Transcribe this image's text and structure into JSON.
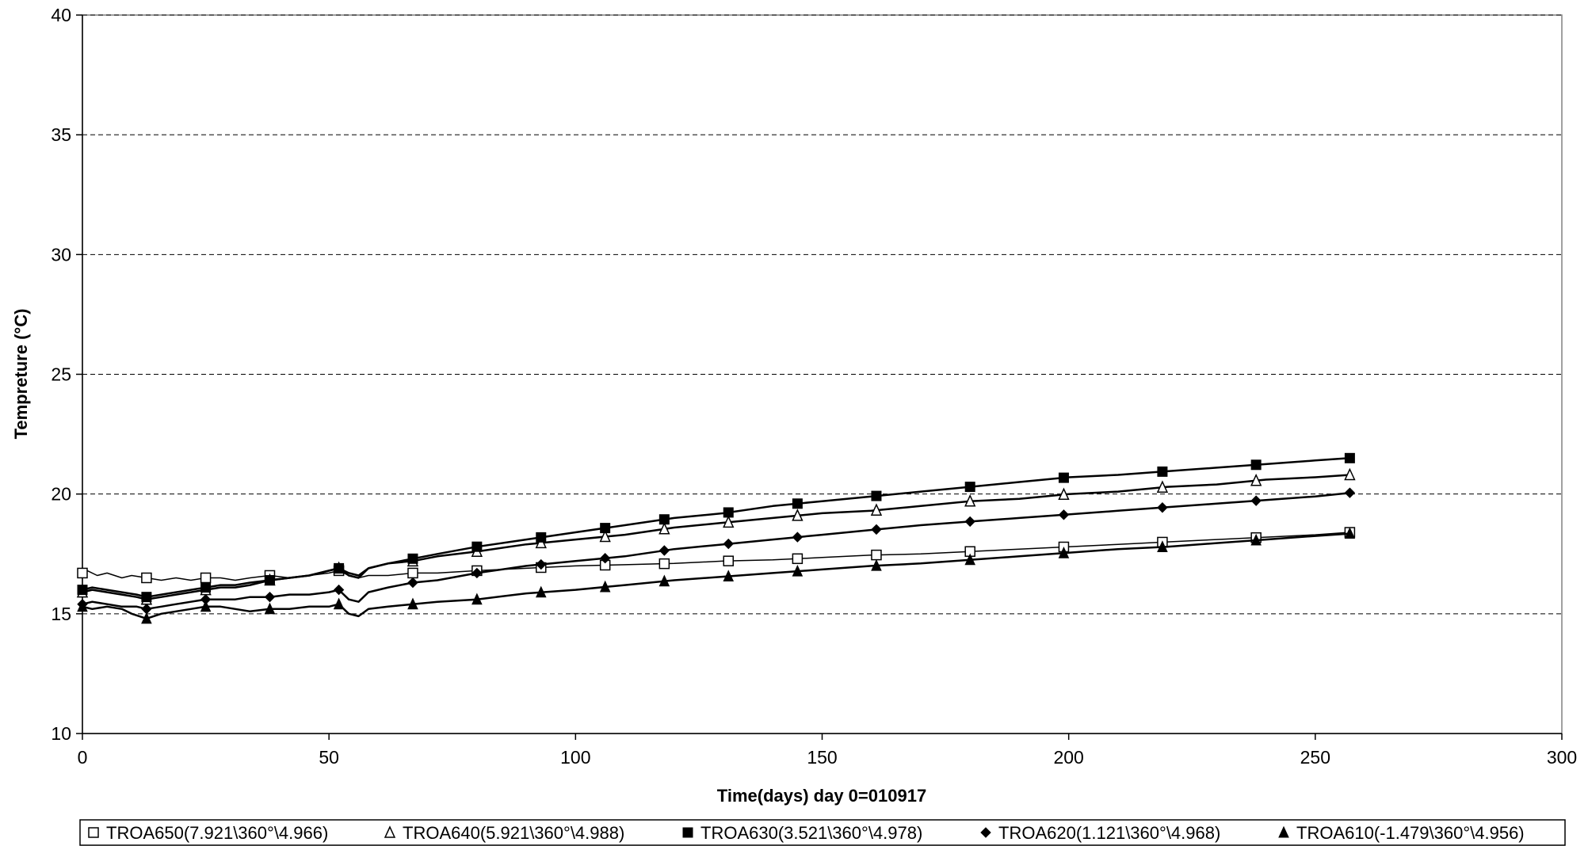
{
  "chart_data": {
    "type": "line",
    "title": "",
    "xlabel": "Time(days)  day 0=010917",
    "ylabel": "Tempreture (°C)",
    "xlim": [
      0,
      300
    ],
    "ylim": [
      10,
      40
    ],
    "xticks": [
      0,
      50,
      100,
      150,
      200,
      250,
      300
    ],
    "yticks": [
      10,
      15,
      20,
      25,
      30,
      35,
      40
    ],
    "grid": "horizontal dashed",
    "legend_position": "bottom",
    "series": [
      {
        "name": "TROA650(7.921\\360°\\4.966)",
        "marker": "square-open",
        "points": [
          [
            0,
            16.7
          ],
          [
            1,
            16.8
          ],
          [
            3,
            16.6
          ],
          [
            5,
            16.7
          ],
          [
            8,
            16.5
          ],
          [
            10,
            16.6
          ],
          [
            13,
            16.5
          ],
          [
            16,
            16.4
          ],
          [
            19,
            16.5
          ],
          [
            22,
            16.4
          ],
          [
            25,
            16.5
          ],
          [
            28,
            16.5
          ],
          [
            31,
            16.4
          ],
          [
            34,
            16.5
          ],
          [
            38,
            16.6
          ],
          [
            42,
            16.5
          ],
          [
            46,
            16.6
          ],
          [
            50,
            16.7
          ],
          [
            52,
            16.8
          ],
          [
            54,
            16.6
          ],
          [
            56,
            16.5
          ],
          [
            58,
            16.6
          ],
          [
            62,
            16.6
          ],
          [
            67,
            16.7
          ],
          [
            72,
            16.7
          ],
          [
            80,
            16.8
          ],
          [
            90,
            16.9
          ],
          [
            100,
            17.0
          ],
          [
            110,
            17.05
          ],
          [
            120,
            17.1
          ],
          [
            130,
            17.2
          ],
          [
            140,
            17.25
          ],
          [
            150,
            17.35
          ],
          [
            160,
            17.45
          ],
          [
            170,
            17.5
          ],
          [
            180,
            17.6
          ],
          [
            190,
            17.7
          ],
          [
            200,
            17.8
          ],
          [
            210,
            17.9
          ],
          [
            220,
            18.0
          ],
          [
            230,
            18.1
          ],
          [
            240,
            18.2
          ],
          [
            250,
            18.3
          ],
          [
            257,
            18.4
          ]
        ],
        "marker_x": [
          0,
          13,
          25,
          38,
          52,
          67,
          80,
          93,
          106,
          118,
          131,
          145,
          161,
          180,
          199,
          219,
          238,
          257
        ]
      },
      {
        "name": "TROA640(5.921\\360°\\4.988)",
        "marker": "triangle-open",
        "points": [
          [
            0,
            15.9
          ],
          [
            2,
            16.0
          ],
          [
            5,
            15.9
          ],
          [
            8,
            15.8
          ],
          [
            11,
            15.7
          ],
          [
            13,
            15.6
          ],
          [
            16,
            15.7
          ],
          [
            19,
            15.8
          ],
          [
            22,
            15.9
          ],
          [
            25,
            16.0
          ],
          [
            28,
            16.1
          ],
          [
            31,
            16.1
          ],
          [
            34,
            16.2
          ],
          [
            38,
            16.4
          ],
          [
            42,
            16.5
          ],
          [
            46,
            16.6
          ],
          [
            50,
            16.8
          ],
          [
            52,
            16.9
          ],
          [
            54,
            16.6
          ],
          [
            56,
            16.5
          ],
          [
            58,
            16.9
          ],
          [
            62,
            17.1
          ],
          [
            67,
            17.2
          ],
          [
            72,
            17.4
          ],
          [
            80,
            17.6
          ],
          [
            90,
            17.9
          ],
          [
            100,
            18.1
          ],
          [
            110,
            18.3
          ],
          [
            120,
            18.6
          ],
          [
            130,
            18.8
          ],
          [
            140,
            19.0
          ],
          [
            150,
            19.2
          ],
          [
            160,
            19.3
          ],
          [
            170,
            19.5
          ],
          [
            180,
            19.7
          ],
          [
            190,
            19.8
          ],
          [
            200,
            20.0
          ],
          [
            210,
            20.1
          ],
          [
            220,
            20.3
          ],
          [
            230,
            20.4
          ],
          [
            240,
            20.6
          ],
          [
            250,
            20.7
          ],
          [
            257,
            20.8
          ]
        ],
        "marker_x": [
          0,
          13,
          25,
          38,
          52,
          67,
          80,
          93,
          106,
          118,
          131,
          145,
          161,
          180,
          199,
          219,
          238,
          257
        ]
      },
      {
        "name": "TROA630(3.521\\360°\\4.978)",
        "marker": "square-filled",
        "points": [
          [
            0,
            16.0
          ],
          [
            2,
            16.1
          ],
          [
            5,
            16.0
          ],
          [
            8,
            15.9
          ],
          [
            11,
            15.8
          ],
          [
            13,
            15.7
          ],
          [
            16,
            15.8
          ],
          [
            19,
            15.9
          ],
          [
            22,
            16.0
          ],
          [
            25,
            16.1
          ],
          [
            28,
            16.2
          ],
          [
            31,
            16.2
          ],
          [
            34,
            16.3
          ],
          [
            38,
            16.4
          ],
          [
            42,
            16.5
          ],
          [
            46,
            16.6
          ],
          [
            50,
            16.8
          ],
          [
            52,
            16.9
          ],
          [
            54,
            16.7
          ],
          [
            56,
            16.6
          ],
          [
            58,
            16.9
          ],
          [
            62,
            17.1
          ],
          [
            67,
            17.3
          ],
          [
            72,
            17.5
          ],
          [
            80,
            17.8
          ],
          [
            90,
            18.1
          ],
          [
            100,
            18.4
          ],
          [
            110,
            18.7
          ],
          [
            120,
            19.0
          ],
          [
            130,
            19.2
          ],
          [
            140,
            19.5
          ],
          [
            150,
            19.7
          ],
          [
            160,
            19.9
          ],
          [
            170,
            20.1
          ],
          [
            180,
            20.3
          ],
          [
            190,
            20.5
          ],
          [
            200,
            20.7
          ],
          [
            210,
            20.8
          ],
          [
            220,
            20.95
          ],
          [
            230,
            21.1
          ],
          [
            240,
            21.25
          ],
          [
            250,
            21.4
          ],
          [
            257,
            21.5
          ]
        ],
        "marker_x": [
          0,
          13,
          25,
          38,
          52,
          67,
          80,
          93,
          106,
          118,
          131,
          145,
          161,
          180,
          199,
          219,
          238,
          257
        ]
      },
      {
        "name": "TROA620(1.121\\360°\\4.968)",
        "marker": "diamond-filled",
        "points": [
          [
            0,
            15.4
          ],
          [
            2,
            15.5
          ],
          [
            5,
            15.4
          ],
          [
            8,
            15.3
          ],
          [
            11,
            15.3
          ],
          [
            13,
            15.2
          ],
          [
            16,
            15.3
          ],
          [
            19,
            15.4
          ],
          [
            22,
            15.5
          ],
          [
            25,
            15.6
          ],
          [
            28,
            15.6
          ],
          [
            31,
            15.6
          ],
          [
            34,
            15.7
          ],
          [
            38,
            15.7
          ],
          [
            42,
            15.8
          ],
          [
            46,
            15.8
          ],
          [
            50,
            15.9
          ],
          [
            52,
            16.0
          ],
          [
            54,
            15.6
          ],
          [
            56,
            15.5
          ],
          [
            58,
            15.9
          ],
          [
            62,
            16.1
          ],
          [
            67,
            16.3
          ],
          [
            72,
            16.4
          ],
          [
            80,
            16.7
          ],
          [
            90,
            17.0
          ],
          [
            100,
            17.2
          ],
          [
            110,
            17.4
          ],
          [
            120,
            17.7
          ],
          [
            130,
            17.9
          ],
          [
            140,
            18.1
          ],
          [
            150,
            18.3
          ],
          [
            160,
            18.5
          ],
          [
            170,
            18.7
          ],
          [
            180,
            18.85
          ],
          [
            190,
            19.0
          ],
          [
            200,
            19.15
          ],
          [
            210,
            19.3
          ],
          [
            220,
            19.45
          ],
          [
            230,
            19.6
          ],
          [
            240,
            19.75
          ],
          [
            250,
            19.9
          ],
          [
            257,
            20.05
          ]
        ],
        "marker_x": [
          0,
          13,
          25,
          38,
          52,
          67,
          80,
          93,
          106,
          118,
          131,
          145,
          161,
          180,
          199,
          219,
          238,
          257
        ]
      },
      {
        "name": "TROA610(-1.479\\360°\\4.956)",
        "marker": "triangle-filled",
        "points": [
          [
            0,
            15.3
          ],
          [
            2,
            15.2
          ],
          [
            5,
            15.3
          ],
          [
            8,
            15.2
          ],
          [
            10,
            15.0
          ],
          [
            13,
            14.8
          ],
          [
            16,
            15.0
          ],
          [
            19,
            15.1
          ],
          [
            22,
            15.2
          ],
          [
            25,
            15.3
          ],
          [
            28,
            15.3
          ],
          [
            31,
            15.2
          ],
          [
            34,
            15.1
          ],
          [
            38,
            15.2
          ],
          [
            42,
            15.2
          ],
          [
            46,
            15.3
          ],
          [
            50,
            15.3
          ],
          [
            52,
            15.4
          ],
          [
            54,
            15.0
          ],
          [
            56,
            14.9
          ],
          [
            58,
            15.2
          ],
          [
            62,
            15.3
          ],
          [
            67,
            15.4
          ],
          [
            72,
            15.5
          ],
          [
            80,
            15.6
          ],
          [
            90,
            15.85
          ],
          [
            100,
            16.0
          ],
          [
            110,
            16.2
          ],
          [
            120,
            16.4
          ],
          [
            130,
            16.55
          ],
          [
            140,
            16.7
          ],
          [
            150,
            16.85
          ],
          [
            160,
            17.0
          ],
          [
            170,
            17.1
          ],
          [
            180,
            17.25
          ],
          [
            190,
            17.4
          ],
          [
            200,
            17.55
          ],
          [
            210,
            17.7
          ],
          [
            220,
            17.8
          ],
          [
            230,
            17.95
          ],
          [
            240,
            18.1
          ],
          [
            250,
            18.25
          ],
          [
            257,
            18.35
          ]
        ],
        "marker_x": [
          0,
          13,
          25,
          38,
          52,
          67,
          80,
          93,
          106,
          118,
          131,
          145,
          161,
          180,
          199,
          219,
          238,
          257
        ]
      }
    ]
  }
}
